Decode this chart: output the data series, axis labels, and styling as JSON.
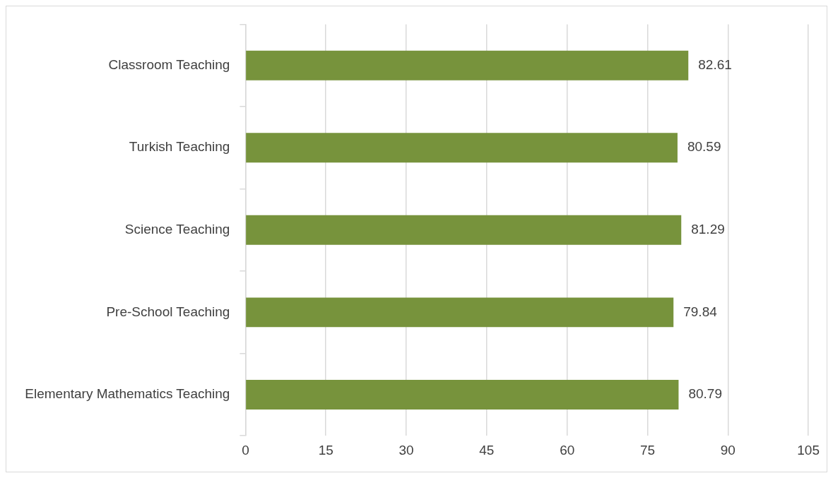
{
  "chart_data": {
    "type": "bar",
    "orientation": "horizontal",
    "categories": [
      "Classroom Teaching",
      "Turkish Teaching",
      "Science Teaching",
      "Pre-School Teaching",
      "Elementary Mathematics Teaching"
    ],
    "values": [
      82.61,
      80.59,
      81.29,
      79.84,
      80.79
    ],
    "color": "#77933c",
    "xlim": [
      0,
      105
    ],
    "xticks": [
      0,
      15,
      30,
      45,
      60,
      75,
      90,
      105
    ],
    "grid": "x",
    "data_labels": true,
    "legend": false
  }
}
